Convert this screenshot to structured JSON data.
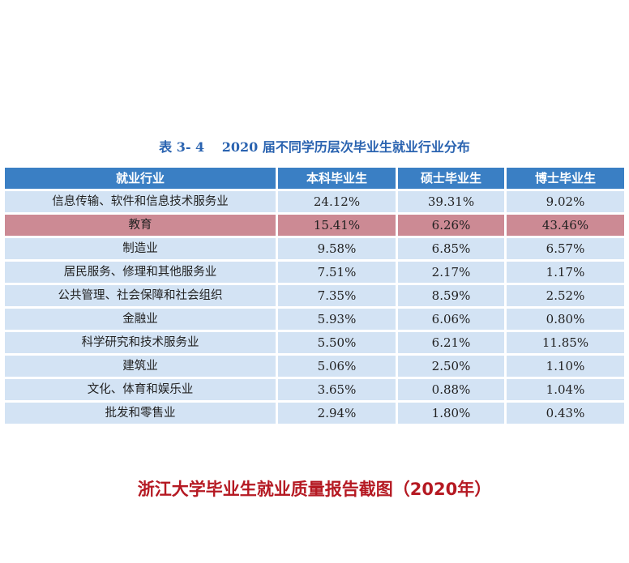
{
  "table": {
    "title": "表 3- 4　 2020 届不同学历层次毕业生就业行业分布",
    "headers": [
      "就业行业",
      "本科毕业生",
      "硕士毕业生",
      "博士毕业生"
    ],
    "rows": [
      {
        "industry": "信息传输、软件和信息技术服务业",
        "bachelor": "24.12%",
        "master": "39.31%",
        "doctor": "9.02%"
      },
      {
        "industry": "教育",
        "bachelor": "15.41%",
        "master": "6.26%",
        "doctor": "43.46%"
      },
      {
        "industry": "制造业",
        "bachelor": "9.58%",
        "master": "6.85%",
        "doctor": "6.57%"
      },
      {
        "industry": "居民服务、修理和其他服务业",
        "bachelor": "7.51%",
        "master": "2.17%",
        "doctor": "1.17%"
      },
      {
        "industry": "公共管理、社会保障和社会组织",
        "bachelor": "7.35%",
        "master": "8.59%",
        "doctor": "2.52%"
      },
      {
        "industry": "金融业",
        "bachelor": "5.93%",
        "master": "6.06%",
        "doctor": "0.80%"
      },
      {
        "industry": "科学研究和技术服务业",
        "bachelor": "5.50%",
        "master": "6.21%",
        "doctor": "11.85%"
      },
      {
        "industry": "建筑业",
        "bachelor": "5.06%",
        "master": "2.50%",
        "doctor": "1.10%"
      },
      {
        "industry": "文化、体育和娱乐业",
        "bachelor": "3.65%",
        "master": "0.88%",
        "doctor": "1.04%"
      },
      {
        "industry": "批发和零售业",
        "bachelor": "2.94%",
        "master": "1.80%",
        "doctor": "0.43%"
      }
    ],
    "highlight_row": 1,
    "colors": {
      "header_bg": "#3a7fc4",
      "row_bg": "#d3e3f4",
      "highlight_bg": "#cc8a94",
      "title_color": "#2a63b0"
    }
  },
  "caption": "浙江大学毕业生就业质量报告截图（2020年）",
  "caption_color": "#b51922"
}
